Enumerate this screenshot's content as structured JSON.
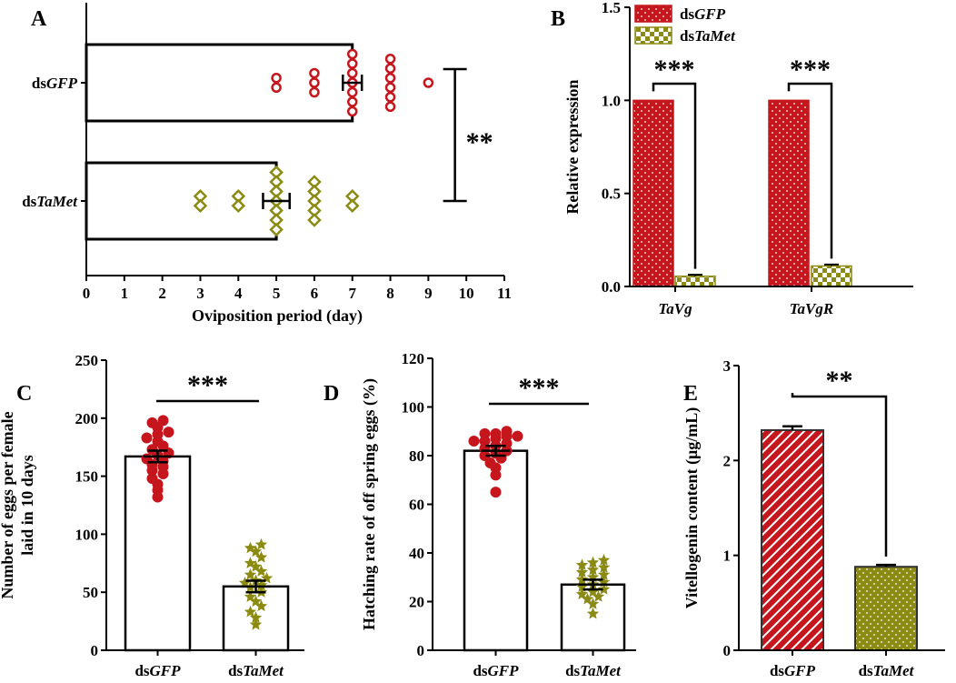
{
  "panels": {
    "A": {
      "label": "A"
    },
    "B": {
      "label": "B"
    },
    "C": {
      "label": "C"
    },
    "D": {
      "label": "D"
    },
    "E": {
      "label": "E"
    }
  },
  "colors": {
    "red": "#c4161c",
    "olive": "#8b8a12",
    "black": "#000000"
  },
  "chart_data": [
    {
      "panel": "A",
      "type": "bar",
      "orientation": "horizontal",
      "xlabel": "Oviposition period (day)",
      "xlim": [
        0,
        11
      ],
      "xticks": [
        0,
        1,
        2,
        3,
        4,
        5,
        6,
        7,
        8,
        9,
        10,
        11
      ],
      "categories": [
        "dsGFP",
        "dsTaMet"
      ],
      "category_parts": [
        {
          "prefix": "ds",
          "italic": "GFP"
        },
        {
          "prefix": "ds",
          "italic": "TaMet"
        }
      ],
      "values": [
        7.0,
        5.0
      ],
      "error": [
        0.25,
        0.35
      ],
      "markers": [
        "circle",
        "diamond"
      ],
      "points": [
        [
          5,
          5,
          6,
          6,
          6,
          7,
          7,
          7,
          7,
          7,
          7,
          7,
          8,
          8,
          8,
          8,
          8,
          8,
          9
        ],
        [
          3,
          3,
          4,
          4,
          5,
          5,
          5,
          5,
          5,
          5,
          5,
          6,
          6,
          6,
          6,
          6,
          7,
          7
        ]
      ],
      "significance": "**"
    },
    {
      "panel": "B",
      "type": "bar",
      "ylabel": "Relative expression",
      "ylim": [
        0,
        1.5
      ],
      "yticks": [
        "0.0",
        "0.5",
        "1.0",
        "1.5"
      ],
      "categories": [
        "TaVg",
        "TaVgR"
      ],
      "series": [
        {
          "name": "dsGFP",
          "prefix": "ds",
          "italic": "GFP",
          "values": [
            1.0,
            1.0
          ],
          "error": [
            0,
            0
          ]
        },
        {
          "name": "dsTaMet",
          "prefix": "ds",
          "italic": "TaMet",
          "values": [
            0.055,
            0.11
          ],
          "error": [
            0.008,
            0.008
          ]
        }
      ],
      "significance": [
        "***",
        "***"
      ]
    },
    {
      "panel": "C",
      "type": "bar",
      "ylabel_lines": [
        "Number of eggs  per female",
        "laid in 10 days"
      ],
      "ylim": [
        0,
        250
      ],
      "yticks": [
        0,
        50,
        100,
        150,
        200,
        250
      ],
      "categories": [
        "dsGFP",
        "dsTaMet"
      ],
      "category_parts": [
        {
          "prefix": "ds",
          "italic": "GFP"
        },
        {
          "prefix": "ds",
          "italic": "TaMet"
        }
      ],
      "values": [
        167,
        55
      ],
      "error": [
        5,
        5
      ],
      "markers": [
        "dot",
        "star"
      ],
      "points": [
        [
          132,
          138,
          143,
          148,
          152,
          155,
          158,
          160,
          163,
          165,
          168,
          170,
          173,
          176,
          180,
          183,
          186,
          188,
          192,
          196,
          198
        ],
        [
          22,
          28,
          33,
          38,
          42,
          46,
          50,
          54,
          56,
          58,
          60,
          62,
          65,
          68,
          72,
          75,
          80,
          85,
          88,
          91
        ]
      ],
      "significance": "***"
    },
    {
      "panel": "D",
      "type": "bar",
      "ylabel": "Hatching rate of off spring eggs (%)",
      "ylim": [
        0,
        120
      ],
      "yticks": [
        0,
        20,
        40,
        60,
        80,
        100,
        120
      ],
      "categories": [
        "dsGFP",
        "dsTaMet"
      ],
      "category_parts": [
        {
          "prefix": "ds",
          "italic": "GFP"
        },
        {
          "prefix": "ds",
          "italic": "TaMet"
        }
      ],
      "values": [
        82,
        27
      ],
      "error": [
        2,
        2
      ],
      "markers": [
        "dot",
        "star"
      ],
      "points": [
        [
          65,
          72,
          75,
          77,
          79,
          80,
          81,
          82,
          83,
          84,
          85,
          86,
          86,
          87,
          88,
          88,
          89,
          89,
          90
        ],
        [
          15,
          19,
          21,
          22,
          23,
          24,
          25,
          26,
          27,
          28,
          29,
          30,
          31,
          32,
          33,
          34,
          35,
          36,
          37
        ]
      ],
      "significance": "***"
    },
    {
      "panel": "E",
      "type": "bar",
      "ylabel": "Vitellogenin content (μg/mL)",
      "ylim": [
        0,
        3
      ],
      "yticks": [
        0,
        1,
        2,
        3
      ],
      "categories": [
        "dsGFP",
        "dsTaMet"
      ],
      "category_parts": [
        {
          "prefix": "ds",
          "italic": "GFP"
        },
        {
          "prefix": "ds",
          "italic": "TaMet"
        }
      ],
      "values": [
        2.32,
        0.88
      ],
      "error": [
        0.04,
        0.02
      ],
      "significance": "**"
    }
  ]
}
